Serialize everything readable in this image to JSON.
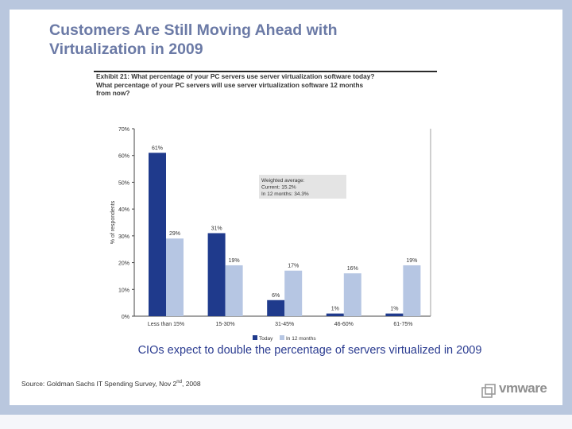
{
  "slide": {
    "title_line1": "Customers Are Still Moving Ahead with",
    "title_line2": "Virtualization in 2009",
    "subtitle": "CIOs expect to double the percentage of servers virtualized in 2009",
    "source_prefix": "Source: Goldman Sachs IT Spending Survey, Nov 2",
    "source_sup": "nd",
    "source_suffix": ", 2008",
    "logo_text": "vmware",
    "logo_icon": "vmware-logo-icon"
  },
  "colors": {
    "today": "#1f3a8c",
    "in12": "#b6c6e3",
    "title": "#6b7aa6",
    "subtitle": "#2a3b90",
    "background": "#b9c7de"
  },
  "chart_data": {
    "type": "bar",
    "title_line1": "Exhibit 21: What percentage of your PC servers use server virtualization software today?",
    "title_line2": "What percentage of your PC servers will use server virtualization software 12 months",
    "title_line3": "from now?",
    "ylabel": "% of respondents",
    "ylim": [
      0,
      70
    ],
    "yticks": [
      "0%",
      "10%",
      "20%",
      "30%",
      "40%",
      "50%",
      "60%",
      "70%"
    ],
    "categories": [
      "Less than 15%",
      "15-30%",
      "31-45%",
      "46-60%",
      "61-75%"
    ],
    "series": [
      {
        "name": "Today",
        "values": [
          61,
          31,
          6,
          1,
          1
        ],
        "labels": [
          "61%",
          "31%",
          "6%",
          "1%",
          "1%"
        ]
      },
      {
        "name": "In 12 months",
        "values": [
          29,
          19,
          17,
          16,
          19
        ],
        "labels": [
          "29%",
          "19%",
          "17%",
          "16%",
          "19%"
        ]
      }
    ],
    "annotation": {
      "line1": "Weighted average:",
      "line2": "Current: 15.2%",
      "line3": "In 12 months: 34.3%"
    },
    "legend_position": "bottom",
    "grid": false
  }
}
